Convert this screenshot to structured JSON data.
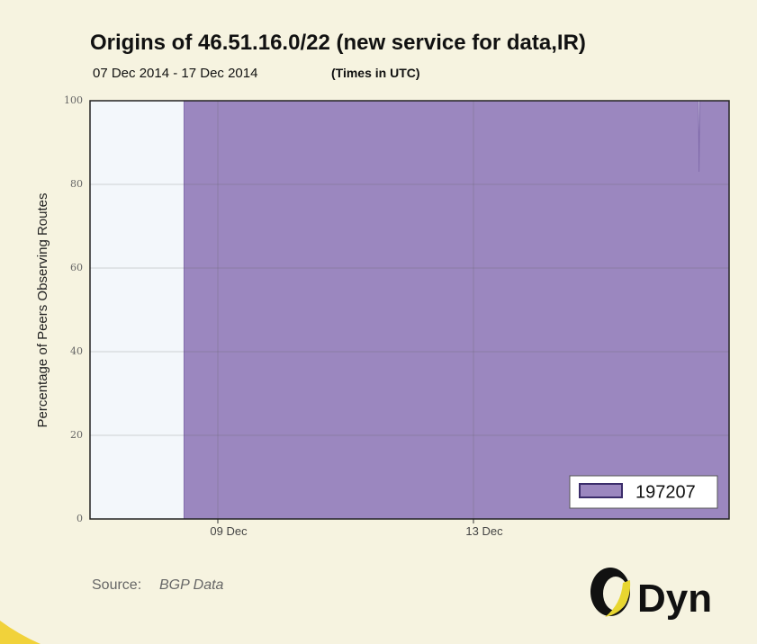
{
  "chart_data": {
    "type": "area",
    "title": "Origins of 46.51.16.0/22 (new service for data,IR)",
    "subtitle": "07 Dec 2014 - 17 Dec 2014",
    "subtitle_note": "(Times in UTC)",
    "ylabel": "Percentage of Peers Observing Routes",
    "source_label": "Source:",
    "source": "BGP Data",
    "brand": "Dyn",
    "x": [
      8.47,
      16.52,
      16.53,
      16.54,
      17
    ],
    "series": [
      {
        "name": "197207",
        "color": "#9b87bf",
        "values": [
          100,
          100,
          83,
          100,
          100
        ]
      }
    ],
    "xlim": [
      7,
      17
    ],
    "xticks": [
      {
        "value": 9,
        "label": "09 Dec"
      },
      {
        "value": 13,
        "label": "13 Dec"
      }
    ],
    "ylim": [
      0,
      100
    ],
    "yticks": [
      0,
      20,
      40,
      60,
      80,
      100
    ],
    "grid": true,
    "legend": "lower right"
  }
}
